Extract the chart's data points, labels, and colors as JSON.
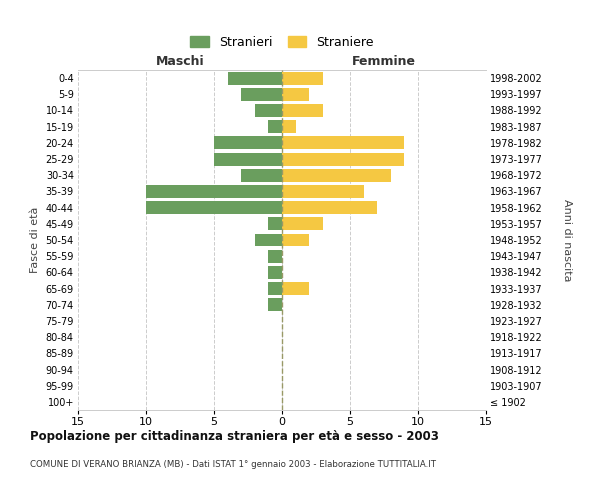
{
  "age_groups": [
    "100+",
    "95-99",
    "90-94",
    "85-89",
    "80-84",
    "75-79",
    "70-74",
    "65-69",
    "60-64",
    "55-59",
    "50-54",
    "45-49",
    "40-44",
    "35-39",
    "30-34",
    "25-29",
    "20-24",
    "15-19",
    "10-14",
    "5-9",
    "0-4"
  ],
  "birth_years": [
    "≤ 1902",
    "1903-1907",
    "1908-1912",
    "1913-1917",
    "1918-1922",
    "1923-1927",
    "1928-1932",
    "1933-1937",
    "1938-1942",
    "1943-1947",
    "1948-1952",
    "1953-1957",
    "1958-1962",
    "1963-1967",
    "1968-1972",
    "1973-1977",
    "1978-1982",
    "1983-1987",
    "1988-1992",
    "1993-1997",
    "1998-2002"
  ],
  "maschi": [
    0,
    0,
    0,
    0,
    0,
    0,
    1,
    1,
    1,
    1,
    2,
    1,
    10,
    10,
    3,
    5,
    5,
    1,
    2,
    3,
    4
  ],
  "femmine": [
    0,
    0,
    0,
    0,
    0,
    0,
    0,
    2,
    0,
    0,
    2,
    3,
    7,
    6,
    8,
    9,
    9,
    1,
    3,
    2,
    3
  ],
  "color_maschi": "#6a9e5e",
  "color_femmine": "#f5c842",
  "title": "Popolazione per cittadinanza straniera per età e sesso - 2003",
  "subtitle": "COMUNE DI VERANO BRIANZA (MB) - Dati ISTAT 1° gennaio 2003 - Elaborazione TUTTITALIA.IT",
  "ylabel_left": "Fasce di età",
  "ylabel_right": "Anni di nascita",
  "legend_maschi": "Stranieri",
  "legend_femmine": "Straniere",
  "xlim": 15,
  "header_maschi": "Maschi",
  "header_femmine": "Femmine",
  "background_color": "#ffffff",
  "grid_color": "#cccccc"
}
